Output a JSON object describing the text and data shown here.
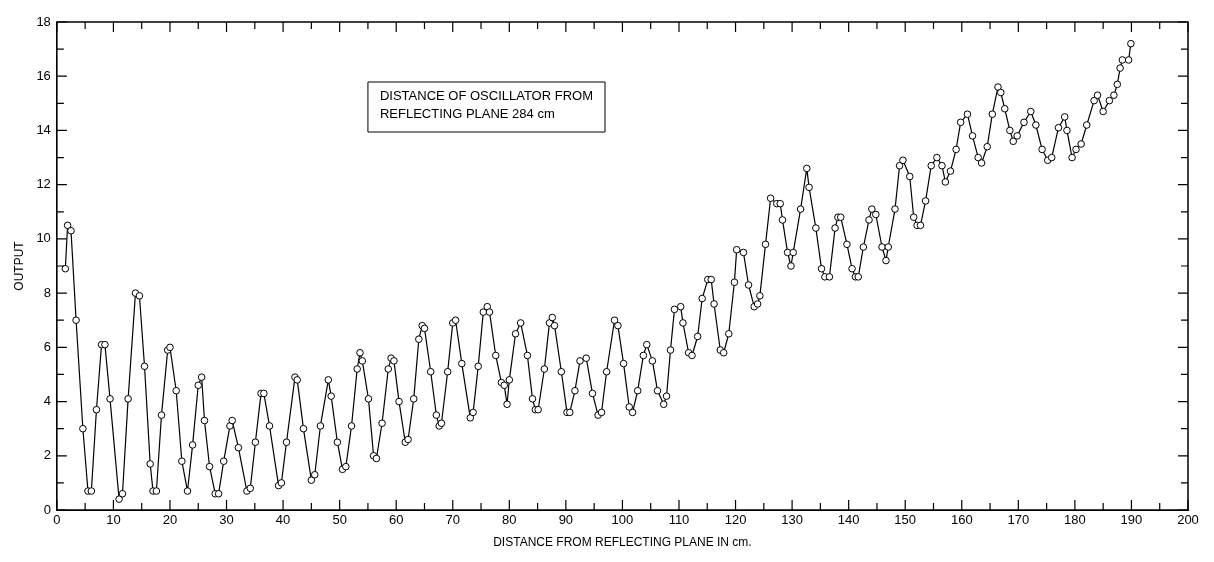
{
  "chart_data": {
    "type": "line",
    "xlabel": "DISTANCE FROM REFLECTING PLANE IN cm.",
    "ylabel": "OUTPUT",
    "annotations": [
      "DISTANCE OF OSCILLATOR FROM REFLECTING PLANE 284 cm"
    ],
    "xlim": [
      0,
      200
    ],
    "ylim": [
      0,
      18
    ],
    "xticks": [
      0,
      {
        "value": 5,
        "label": null
      },
      10,
      {
        "value": 15,
        "label": null
      },
      20,
      {
        "value": 25,
        "label": null
      },
      30,
      {
        "value": 35,
        "label": null
      },
      40,
      {
        "value": 45,
        "label": null
      },
      50,
      {
        "value": 55,
        "label": null
      },
      60,
      {
        "value": 65,
        "label": null
      },
      70,
      {
        "value": 75,
        "label": null
      },
      80,
      {
        "value": 85,
        "label": null
      },
      90,
      {
        "value": 95,
        "label": null
      },
      100,
      {
        "value": 105,
        "label": null
      },
      110,
      {
        "value": 115,
        "label": null
      },
      120,
      {
        "value": 125,
        "label": null
      },
      130,
      {
        "value": 135,
        "label": null
      },
      140,
      {
        "value": 145,
        "label": null
      },
      150,
      {
        "value": 155,
        "label": null
      },
      160,
      {
        "value": 165,
        "label": null
      },
      170,
      {
        "value": 175,
        "label": null
      },
      180,
      {
        "value": 185,
        "label": null
      },
      190,
      {
        "value": 195,
        "label": null
      },
      200
    ],
    "yticks": [
      0,
      {
        "value": 1,
        "label": null
      },
      2,
      {
        "value": 3,
        "label": null
      },
      4,
      {
        "value": 5,
        "label": null
      },
      6,
      {
        "value": 7,
        "label": null
      },
      8,
      {
        "value": 9,
        "label": null
      },
      10,
      {
        "value": 11,
        "label": null
      },
      12,
      {
        "value": 13,
        "label": null
      },
      14,
      {
        "value": 15,
        "label": null
      },
      16,
      {
        "value": 17,
        "label": null
      },
      18
    ],
    "grid": false,
    "legend": false,
    "marker": "circle",
    "line_style": "solid",
    "series": [
      {
        "color": "#000000",
        "x": [
          1.5,
          1.9,
          2.5,
          3.4,
          4.6,
          5.5,
          6.1,
          7.0,
          7.9,
          8.5,
          9.4,
          11.0,
          11.6,
          12.6,
          13.9,
          14.6,
          15.5,
          16.5,
          17.0,
          17.6,
          18.5,
          19.6,
          20.0,
          21.1,
          22.1,
          23.1,
          24.0,
          25.0,
          25.6,
          26.1,
          27.0,
          28.0,
          28.6,
          29.5,
          30.6,
          31.0,
          32.1,
          33.6,
          34.2,
          35.1,
          36.1,
          36.6,
          37.6,
          39.2,
          39.7,
          40.6,
          42.1,
          42.5,
          43.6,
          45.0,
          45.6,
          46.6,
          48.0,
          48.5,
          49.6,
          50.5,
          51.1,
          52.1,
          53.1,
          53.6,
          54.0,
          55.1,
          56.0,
          56.5,
          57.5,
          58.6,
          59.1,
          59.6,
          60.5,
          61.6,
          62.1,
          63.1,
          64.0,
          64.6,
          65.0,
          66.1,
          67.1,
          67.6,
          68.0,
          69.1,
          70.0,
          70.5,
          71.6,
          73.1,
          73.6,
          74.5,
          75.4,
          76.1,
          76.5,
          77.6,
          78.6,
          79.1,
          79.6,
          80.0,
          81.1,
          82.0,
          83.2,
          84.1,
          84.6,
          85.1,
          86.2,
          87.1,
          87.6,
          88.0,
          89.2,
          90.2,
          90.7,
          91.6,
          92.5,
          93.6,
          94.7,
          95.7,
          96.3,
          97.2,
          98.6,
          99.2,
          100.2,
          101.2,
          101.8,
          102.7,
          103.7,
          104.3,
          105.3,
          106.2,
          107.3,
          107.8,
          108.5,
          109.2,
          110.3,
          110.7,
          111.7,
          112.3,
          113.3,
          114.1,
          115.1,
          115.7,
          116.2,
          117.3,
          117.9,
          118.8,
          119.8,
          120.2,
          121.4,
          122.3,
          123.3,
          123.9,
          124.3,
          125.3,
          126.2,
          127.3,
          127.9,
          128.3,
          129.2,
          129.8,
          130.2,
          131.5,
          132.6,
          133.0,
          134.2,
          135.2,
          135.8,
          136.6,
          137.6,
          138.1,
          138.6,
          139.7,
          140.6,
          141.2,
          141.7,
          142.6,
          143.6,
          144.1,
          144.8,
          145.9,
          146.6,
          147.0,
          148.2,
          149.0,
          149.6,
          150.8,
          151.5,
          152.1,
          152.7,
          153.6,
          154.6,
          155.6,
          156.5,
          157.1,
          158.0,
          159.0,
          159.8,
          161.0,
          161.9,
          162.9,
          163.5,
          164.5,
          165.4,
          166.4,
          166.9,
          167.6,
          168.5,
          169.1,
          169.8,
          171.0,
          172.2,
          173.1,
          174.2,
          175.2,
          175.9,
          177.1,
          178.2,
          178.6,
          179.5,
          180.2,
          181.1,
          182.1,
          183.4,
          184.0,
          185.0,
          186.1,
          186.9,
          187.5,
          188.0,
          188.4,
          189.5,
          189.9
        ],
        "values": [
          8.9,
          10.5,
          10.3,
          7.0,
          3.0,
          0.7,
          0.7,
          3.7,
          6.1,
          6.1,
          4.1,
          0.4,
          0.6,
          4.1,
          8.0,
          7.9,
          5.3,
          1.7,
          0.7,
          0.7,
          3.5,
          5.9,
          6.0,
          4.4,
          1.8,
          0.7,
          2.4,
          4.6,
          4.9,
          3.3,
          1.6,
          0.6,
          0.6,
          1.8,
          3.1,
          3.3,
          2.3,
          0.7,
          0.8,
          2.5,
          4.3,
          4.3,
          3.1,
          0.9,
          1.0,
          2.5,
          4.9,
          4.8,
          3.0,
          1.1,
          1.3,
          3.1,
          4.8,
          4.2,
          2.5,
          1.5,
          1.6,
          3.1,
          5.2,
          5.8,
          5.5,
          4.1,
          2.0,
          1.9,
          3.2,
          5.2,
          5.6,
          5.5,
          4.0,
          2.5,
          2.6,
          4.1,
          6.3,
          6.8,
          6.7,
          5.1,
          3.5,
          3.1,
          3.2,
          5.1,
          6.9,
          7.0,
          5.4,
          3.4,
          3.6,
          5.3,
          7.3,
          7.5,
          7.3,
          5.7,
          4.7,
          4.6,
          3.9,
          4.8,
          6.5,
          6.9,
          5.7,
          4.1,
          3.7,
          3.7,
          5.2,
          6.9,
          7.1,
          6.8,
          5.1,
          3.6,
          3.6,
          4.4,
          5.5,
          5.6,
          4.3,
          3.5,
          3.6,
          5.1,
          7.0,
          6.8,
          5.4,
          3.8,
          3.6,
          4.4,
          5.7,
          6.1,
          5.5,
          4.4,
          3.9,
          4.2,
          5.9,
          7.4,
          7.5,
          6.9,
          5.8,
          5.7,
          6.4,
          7.8,
          8.5,
          8.5,
          7.6,
          5.9,
          5.8,
          6.5,
          8.4,
          9.6,
          9.5,
          8.3,
          7.5,
          7.6,
          7.9,
          9.8,
          11.5,
          11.3,
          11.3,
          10.7,
          9.5,
          9.0,
          9.5,
          11.1,
          12.6,
          11.9,
          10.4,
          8.9,
          8.6,
          8.6,
          10.4,
          10.8,
          10.8,
          9.8,
          8.9,
          8.6,
          8.6,
          9.7,
          10.7,
          11.1,
          10.9,
          9.7,
          9.2,
          9.7,
          11.1,
          12.7,
          12.9,
          12.3,
          10.8,
          10.5,
          10.5,
          11.4,
          12.7,
          13.0,
          12.7,
          12.1,
          12.5,
          13.3,
          14.3,
          14.6,
          13.8,
          13.0,
          12.8,
          13.4,
          14.6,
          15.6,
          15.4,
          14.8,
          14.0,
          13.6,
          13.8,
          14.3,
          14.7,
          14.2,
          13.3,
          12.9,
          13.0,
          14.1,
          14.5,
          14.0,
          13.0,
          13.3,
          13.5,
          14.2,
          15.1,
          15.3,
          14.7,
          15.1,
          15.3,
          15.7,
          16.3,
          16.6,
          16.6,
          17.2
        ]
      }
    ]
  }
}
